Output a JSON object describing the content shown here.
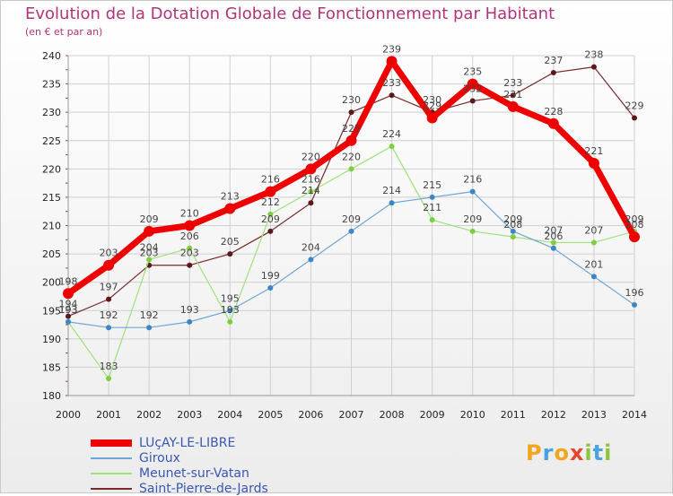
{
  "title": "Evolution de la Dotation Globale de Fonctionnement par Habitant",
  "subtitle": "(en € et par an)",
  "logo": {
    "text": "Proxiti",
    "letters": [
      {
        "ch": "P",
        "color": "#f2a51e"
      },
      {
        "ch": "r",
        "color": "#4aa3df"
      },
      {
        "ch": "o",
        "color": "#f2a51e"
      },
      {
        "ch": "x",
        "color": "#e8452c"
      },
      {
        "ch": "i",
        "color": "#8cc63f"
      },
      {
        "ch": "t",
        "color": "#4aa3df"
      },
      {
        "ch": "i",
        "color": "#8cc63f"
      }
    ]
  },
  "chart_data": {
    "type": "line",
    "x": [
      2000,
      2001,
      2002,
      2003,
      2004,
      2005,
      2006,
      2007,
      2008,
      2009,
      2010,
      2011,
      2012,
      2013,
      2014
    ],
    "ylim": [
      180,
      240
    ],
    "yticks": [
      180,
      185,
      190,
      195,
      200,
      205,
      210,
      215,
      220,
      225,
      230,
      235,
      240
    ],
    "grid": true,
    "legend_position": "bottom-left",
    "series": [
      {
        "name": "Saint-Pierre-de-Jards",
        "color": "#7a2a2a",
        "marker": "#5a1a1a",
        "width": 1.2,
        "values": [
          194,
          197,
          203,
          203,
          205,
          209,
          214,
          230,
          233,
          230,
          232,
          233,
          237,
          238,
          229
        ]
      },
      {
        "name": "Meunet-sur-Vatan",
        "color": "#9ee27c",
        "marker": "#7ccf3e",
        "width": 1.2,
        "values": [
          193,
          183,
          204,
          206,
          193,
          212,
          216,
          220,
          224,
          211,
          209,
          208,
          207,
          207,
          209
        ]
      },
      {
        "name": "Giroux",
        "color": "#6fa6d6",
        "marker": "#3d86c6",
        "width": 1.2,
        "values": [
          193,
          192,
          192,
          193,
          195,
          199,
          204,
          209,
          214,
          215,
          216,
          209,
          206,
          201,
          196
        ]
      },
      {
        "name": "LUçAY-LE-LIBRE",
        "color": "#ee0000",
        "marker": "#ee0000",
        "width": 7,
        "values": [
          198,
          203,
          209,
          210,
          213,
          216,
          220,
          225,
          239,
          229,
          235,
          231,
          228,
          221,
          208
        ]
      }
    ]
  }
}
